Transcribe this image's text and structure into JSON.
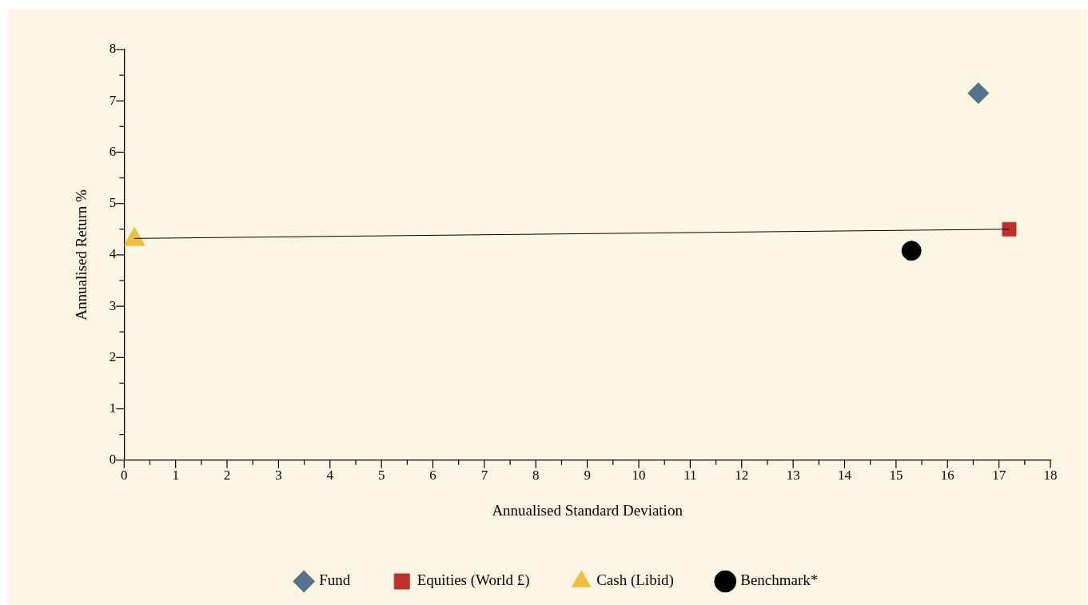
{
  "chart_data": {
    "type": "scatter",
    "xlabel": "Annualised Standard Deviation",
    "ylabel": "Annualised Return %",
    "xlim": [
      0,
      18
    ],
    "xticks": [
      0,
      {
        "value": 0.5,
        "label": null
      },
      1,
      {
        "value": 1.5,
        "label": null
      },
      2,
      {
        "value": 2.5,
        "label": null
      },
      3,
      {
        "value": 3.5,
        "label": null
      },
      4,
      {
        "value": 4.5,
        "label": null
      },
      5,
      {
        "value": 5.5,
        "label": null
      },
      6,
      {
        "value": 6.5,
        "label": null
      },
      7,
      {
        "value": 7.5,
        "label": null
      },
      8,
      {
        "value": 8.5,
        "label": null
      },
      9,
      {
        "value": 9.5,
        "label": null
      },
      10,
      {
        "value": 10.5,
        "label": null
      },
      11,
      {
        "value": 11.5,
        "label": null
      },
      12,
      {
        "value": 12.5,
        "label": null
      },
      13,
      {
        "value": 13.5,
        "label": null
      },
      14,
      {
        "value": 14.5,
        "label": null
      },
      15,
      {
        "value": 15.5,
        "label": null
      },
      16,
      {
        "value": 16.5,
        "label": null
      },
      17,
      {
        "value": 17.5,
        "label": null
      },
      18
    ],
    "ylim": [
      0,
      8
    ],
    "yticks": [
      0,
      {
        "value": 0.5,
        "label": null
      },
      1,
      {
        "value": 1.5,
        "label": null
      },
      2,
      {
        "value": 2.5,
        "label": null
      },
      3,
      {
        "value": 3.5,
        "label": null
      },
      4,
      {
        "value": 4.5,
        "label": null
      },
      5,
      {
        "value": 5.5,
        "label": null
      },
      6,
      {
        "value": 6.5,
        "label": null
      },
      7,
      {
        "value": 7.5,
        "label": null
      },
      8
    ],
    "grid": false,
    "legend": "bottom",
    "series": [
      {
        "type": "line",
        "color": "#000000",
        "x": [
          0.2,
          17.2
        ],
        "values": [
          4.32,
          4.5
        ],
        "marker": "none"
      },
      {
        "name": "Fund",
        "color": "#56728a",
        "x": [
          16.6
        ],
        "values": [
          7.15
        ],
        "marker": "diamond"
      },
      {
        "name": "Equities (World £)",
        "color": "#c0302b",
        "x": [
          17.2
        ],
        "values": [
          4.5
        ],
        "marker": "square"
      },
      {
        "name": "Cash (Libid)",
        "color": "#ecc03c",
        "x": [
          0.2
        ],
        "values": [
          4.3
        ],
        "marker": "triangle"
      },
      {
        "name": "Benchmark*",
        "color": "#000000",
        "x": [
          15.3
        ],
        "values": [
          4.08
        ],
        "marker": "circle"
      }
    ]
  }
}
